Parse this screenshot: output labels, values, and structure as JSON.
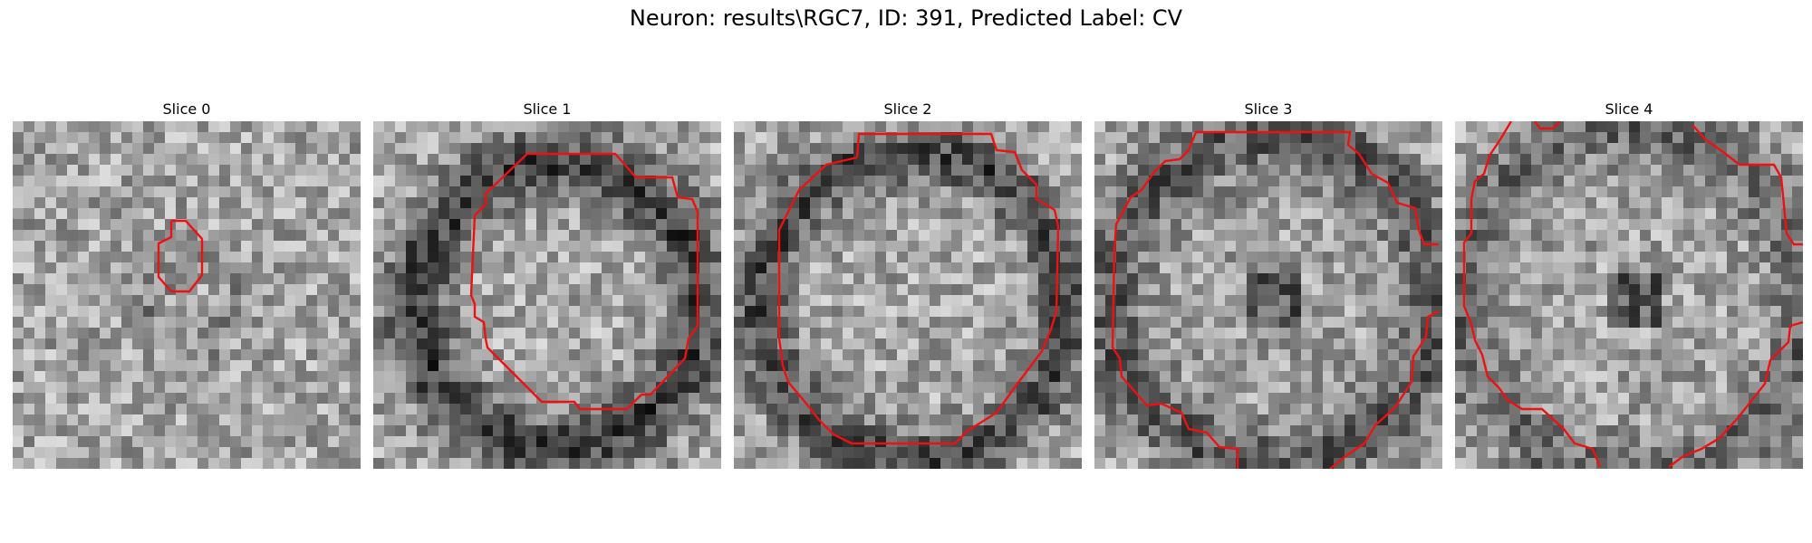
{
  "figure": {
    "suptitle": "Neuron: results\\RGC7, ID: 391, Predicted Label: CV",
    "contour_color": "#ee1111",
    "colormap": "grayscale",
    "panels": [
      {
        "title": "Slice 0"
      },
      {
        "title": "Slice 1"
      },
      {
        "title": "Slice 2"
      },
      {
        "title": "Slice 3"
      },
      {
        "title": "Slice 4"
      }
    ]
  }
}
